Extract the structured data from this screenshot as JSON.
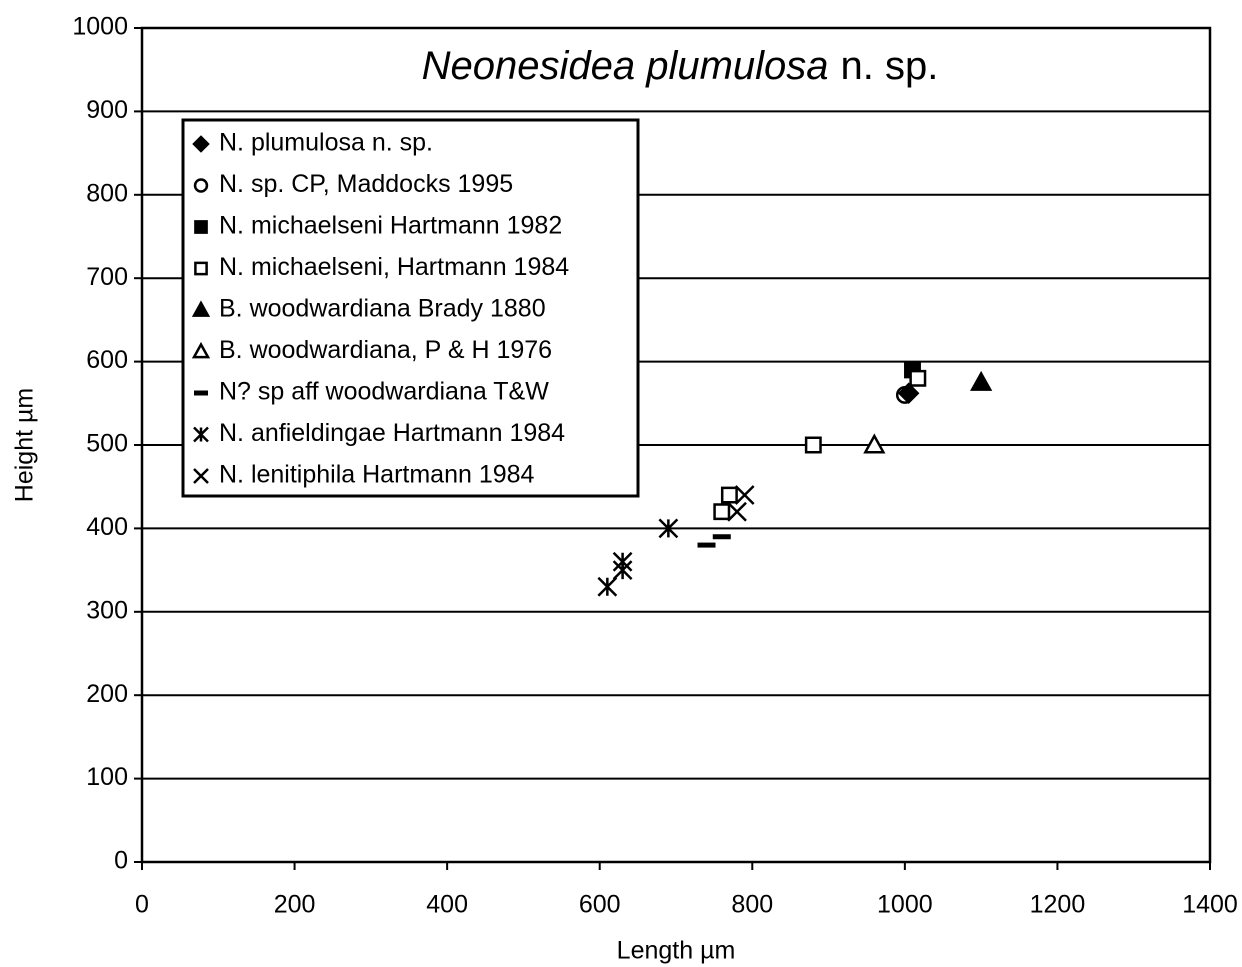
{
  "chart_data": {
    "type": "scatter",
    "title": {
      "italic": "Neonesidea plumulosa",
      "plain": "n. sp."
    },
    "x_label": "Length µm",
    "y_label": "Height µm",
    "xlim": [
      0,
      1400
    ],
    "xticks": [
      0,
      200,
      400,
      600,
      800,
      1000,
      1200,
      1400
    ],
    "ylim": [
      0,
      1000
    ],
    "yticks": [
      0,
      100,
      200,
      300,
      400,
      500,
      600,
      700,
      800,
      900,
      1000
    ],
    "grid": "y",
    "legend": "upper left",
    "series": [
      {
        "name": "N. plumulosa n. sp.",
        "marker": "diamond",
        "color": "#000",
        "x": [
          1005
        ],
        "values": [
          562
        ]
      },
      {
        "name": "N. sp. CP, Maddocks 1995",
        "marker": "circle",
        "color": "#000",
        "x": [
          1000
        ],
        "values": [
          560
        ]
      },
      {
        "name": "N. michaelseni Hartmann 1982",
        "marker": "square-filled",
        "color": "#000",
        "x": [
          1010
        ],
        "values": [
          590
        ]
      },
      {
        "name": "N. michaelseni, Hartmann 1984",
        "marker": "square-open",
        "color": "#000",
        "x": [
          1017,
          880,
          770,
          760
        ],
        "values": [
          580,
          500,
          440,
          420
        ]
      },
      {
        "name": "B. woodwardiana Brady 1880",
        "marker": "triangle-filled",
        "color": "#000",
        "x": [
          1100
        ],
        "values": [
          575
        ]
      },
      {
        "name": "B. woodwardiana, P & H 1976",
        "marker": "triangle-open",
        "color": "#000",
        "x": [
          960
        ],
        "values": [
          500
        ]
      },
      {
        "name": "N? sp aff woodwardiana T&W",
        "marker": "dash",
        "color": "#000",
        "x": [
          740,
          760
        ],
        "values": [
          380,
          390
        ]
      },
      {
        "name": "N. anfieldingae Hartmann 1984",
        "marker": "asterisk",
        "color": "#000",
        "x": [
          610,
          630,
          630,
          690
        ],
        "values": [
          330,
          360,
          350,
          400
        ]
      },
      {
        "name": "N. lenitiphila Hartmann 1984",
        "marker": "cross",
        "color": "#000",
        "x": [
          790,
          780
        ],
        "values": [
          440,
          420
        ]
      }
    ]
  }
}
